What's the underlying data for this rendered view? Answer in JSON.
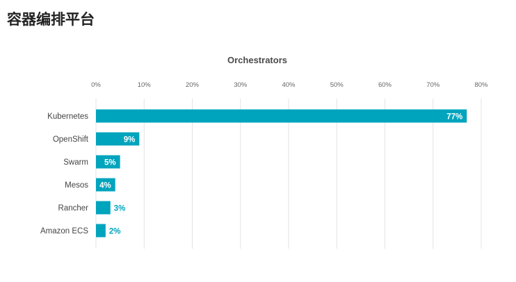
{
  "page": {
    "heading": "容器编排平台"
  },
  "colors": {
    "bar": "#00a4bd",
    "grid": "#e3e3e3",
    "tick_text": "#666666",
    "category_text": "#444444",
    "title_text": "#4a4a4a",
    "label_inside": "#ffffff",
    "label_outside": "#00a4bd"
  },
  "chart_data": {
    "type": "bar",
    "orientation": "horizontal",
    "title": "Orchestrators",
    "xlabel": "",
    "ylabel": "",
    "categories": [
      "Kubernetes",
      "OpenShift",
      "Swarm",
      "Mesos",
      "Rancher",
      "Amazon ECS"
    ],
    "values": [
      77,
      9,
      5,
      4,
      3,
      2
    ],
    "data_labels": [
      "77%",
      "9%",
      "5%",
      "4%",
      "3%",
      "2%"
    ],
    "xlim": [
      0,
      80
    ],
    "x_ticks": [
      0,
      10,
      20,
      30,
      40,
      50,
      60,
      70,
      80
    ],
    "x_tick_labels": [
      "0%",
      "10%",
      "20%",
      "30%",
      "40%",
      "50%",
      "60%",
      "70%",
      "80%"
    ],
    "axis_position": "top",
    "grid": true,
    "legend": "none"
  }
}
